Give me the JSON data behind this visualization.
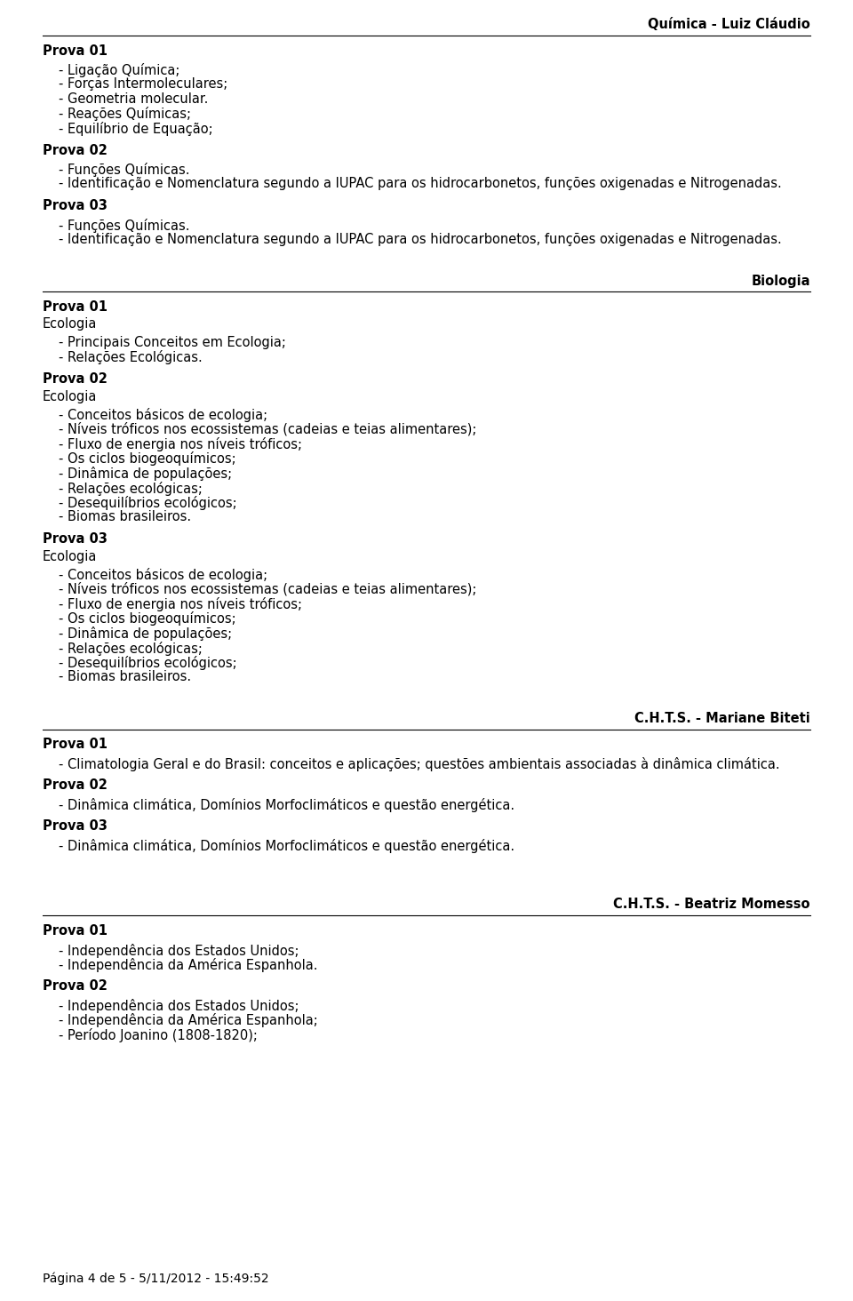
{
  "bg_color": "#ffffff",
  "text_color": "#000000",
  "page_width": 9.6,
  "page_height": 14.64,
  "dpi": 100,
  "sections": [
    {
      "type": "header_line",
      "label": "Química - Luiz Cláudio",
      "align": "right",
      "bold": true,
      "fontsize": 10.5
    },
    {
      "type": "hline"
    },
    {
      "type": "vspace",
      "size": 6
    },
    {
      "type": "heading",
      "text": "Prova 01",
      "bold": true,
      "fontsize": 10.5
    },
    {
      "type": "vspace",
      "size": 4
    },
    {
      "type": "bullet",
      "text": "- Ligação Química;",
      "fontsize": 10.5,
      "indent": 18
    },
    {
      "type": "bullet",
      "text": "- Forças Intermoleculares;",
      "fontsize": 10.5,
      "indent": 18
    },
    {
      "type": "bullet",
      "text": "- Geometria molecular.",
      "fontsize": 10.5,
      "indent": 18
    },
    {
      "type": "bullet",
      "text": "- Reações Químicas;",
      "fontsize": 10.5,
      "indent": 18
    },
    {
      "type": "bullet",
      "text": "- Equilíbrio de Equação;",
      "fontsize": 10.5,
      "indent": 18
    },
    {
      "type": "vspace",
      "size": 8
    },
    {
      "type": "heading",
      "text": "Prova 02",
      "bold": true,
      "fontsize": 10.5
    },
    {
      "type": "vspace",
      "size": 4
    },
    {
      "type": "bullet",
      "text": "- Funções Químicas.",
      "fontsize": 10.5,
      "indent": 18
    },
    {
      "type": "bullet",
      "text": "- Identificação e Nomenclatura segundo a IUPAC para os hidrocarbonetos, funções oxigenadas e Nitrogenadas.",
      "fontsize": 10.5,
      "indent": 18
    },
    {
      "type": "vspace",
      "size": 8
    },
    {
      "type": "heading",
      "text": "Prova 03",
      "bold": true,
      "fontsize": 10.5
    },
    {
      "type": "vspace",
      "size": 4
    },
    {
      "type": "bullet",
      "text": "- Funções Químicas.",
      "fontsize": 10.5,
      "indent": 18
    },
    {
      "type": "bullet",
      "text": "- Identificação e Nomenclatura segundo a IUPAC para os hidrocarbonetos, funções oxigenadas e Nitrogenadas.",
      "fontsize": 10.5,
      "indent": 18
    },
    {
      "type": "vspace",
      "size": 30
    },
    {
      "type": "header_line",
      "label": "Biologia",
      "align": "right",
      "bold": true,
      "fontsize": 10.5
    },
    {
      "type": "hline"
    },
    {
      "type": "vspace",
      "size": 6
    },
    {
      "type": "heading",
      "text": "Prova 01",
      "bold": true,
      "fontsize": 10.5
    },
    {
      "type": "vspace",
      "size": 2
    },
    {
      "type": "subheading",
      "text": "Ecologia",
      "bold": false,
      "fontsize": 10.5
    },
    {
      "type": "vspace",
      "size": 4
    },
    {
      "type": "bullet",
      "text": "- Principais Conceitos em Ecologia;",
      "fontsize": 10.5,
      "indent": 18
    },
    {
      "type": "bullet",
      "text": "- Relações Ecológicas.",
      "fontsize": 10.5,
      "indent": 18
    },
    {
      "type": "vspace",
      "size": 8
    },
    {
      "type": "heading",
      "text": "Prova 02",
      "bold": true,
      "fontsize": 10.5
    },
    {
      "type": "vspace",
      "size": 2
    },
    {
      "type": "subheading",
      "text": "Ecologia",
      "bold": false,
      "fontsize": 10.5
    },
    {
      "type": "vspace",
      "size": 4
    },
    {
      "type": "bullet",
      "text": "- Conceitos básicos de ecologia;",
      "fontsize": 10.5,
      "indent": 18
    },
    {
      "type": "bullet",
      "text": "- Níveis tróficos nos ecossistemas (cadeias e teias alimentares);",
      "fontsize": 10.5,
      "indent": 18
    },
    {
      "type": "bullet",
      "text": "- Fluxo de energia nos níveis tróficos;",
      "fontsize": 10.5,
      "indent": 18
    },
    {
      "type": "bullet",
      "text": "- Os ciclos biogeoquímicos;",
      "fontsize": 10.5,
      "indent": 18
    },
    {
      "type": "bullet",
      "text": "- Dinâmica de populações;",
      "fontsize": 10.5,
      "indent": 18
    },
    {
      "type": "bullet",
      "text": "- Relações ecológicas;",
      "fontsize": 10.5,
      "indent": 18
    },
    {
      "type": "bullet",
      "text": "- Desequilíbrios ecológicos;",
      "fontsize": 10.5,
      "indent": 18
    },
    {
      "type": "bullet",
      "text": "- Biomas brasileiros.",
      "fontsize": 10.5,
      "indent": 18
    },
    {
      "type": "vspace",
      "size": 8
    },
    {
      "type": "heading",
      "text": "Prova 03",
      "bold": true,
      "fontsize": 10.5
    },
    {
      "type": "vspace",
      "size": 2
    },
    {
      "type": "subheading",
      "text": "Ecologia",
      "bold": false,
      "fontsize": 10.5
    },
    {
      "type": "vspace",
      "size": 4
    },
    {
      "type": "bullet",
      "text": "- Conceitos básicos de ecologia;",
      "fontsize": 10.5,
      "indent": 18
    },
    {
      "type": "bullet",
      "text": "- Níveis tróficos nos ecossistemas (cadeias e teias alimentares);",
      "fontsize": 10.5,
      "indent": 18
    },
    {
      "type": "bullet",
      "text": "- Fluxo de energia nos níveis tróficos;",
      "fontsize": 10.5,
      "indent": 18
    },
    {
      "type": "bullet",
      "text": "- Os ciclos biogeoquímicos;",
      "fontsize": 10.5,
      "indent": 18
    },
    {
      "type": "bullet",
      "text": "- Dinâmica de populações;",
      "fontsize": 10.5,
      "indent": 18
    },
    {
      "type": "bullet",
      "text": "- Relações ecológicas;",
      "fontsize": 10.5,
      "indent": 18
    },
    {
      "type": "bullet",
      "text": "- Desequilíbrios ecológicos;",
      "fontsize": 10.5,
      "indent": 18
    },
    {
      "type": "bullet",
      "text": "- Biomas brasileiros.",
      "fontsize": 10.5,
      "indent": 18
    },
    {
      "type": "vspace",
      "size": 30
    },
    {
      "type": "header_line",
      "label": "C.H.T.S. - Mariane Biteti",
      "align": "right",
      "bold": true,
      "fontsize": 10.5
    },
    {
      "type": "hline"
    },
    {
      "type": "vspace",
      "size": 6
    },
    {
      "type": "heading",
      "text": "Prova 01",
      "bold": true,
      "fontsize": 10.5
    },
    {
      "type": "vspace",
      "size": 4
    },
    {
      "type": "bullet",
      "text": "- Climatologia Geral e do Brasil: conceitos e aplicações; questões ambientais associadas à dinâmica climática.",
      "fontsize": 10.5,
      "indent": 18
    },
    {
      "type": "vspace",
      "size": 8
    },
    {
      "type": "heading",
      "text": "Prova 02",
      "bold": true,
      "fontsize": 10.5
    },
    {
      "type": "vspace",
      "size": 4
    },
    {
      "type": "bullet",
      "text": "- Dinâmica climática, Domínios Morfoclimáticos e questão energética.",
      "fontsize": 10.5,
      "indent": 18
    },
    {
      "type": "vspace",
      "size": 8
    },
    {
      "type": "heading",
      "text": "Prova 03",
      "bold": true,
      "fontsize": 10.5
    },
    {
      "type": "vspace",
      "size": 4
    },
    {
      "type": "bullet",
      "text": "- Dinâmica climática, Domínios Morfoclimáticos e questão energética.",
      "fontsize": 10.5,
      "indent": 18
    },
    {
      "type": "vspace",
      "size": 50
    },
    {
      "type": "header_line",
      "label": "C.H.T.S. - Beatriz Momesso",
      "align": "right",
      "bold": true,
      "fontsize": 10.5
    },
    {
      "type": "hline"
    },
    {
      "type": "vspace",
      "size": 6
    },
    {
      "type": "heading",
      "text": "Prova 01",
      "bold": true,
      "fontsize": 10.5
    },
    {
      "type": "vspace",
      "size": 4
    },
    {
      "type": "bullet",
      "text": "- Independência dos Estados Unidos;",
      "fontsize": 10.5,
      "indent": 18
    },
    {
      "type": "bullet",
      "text": "- Independência da América Espanhola.",
      "fontsize": 10.5,
      "indent": 18
    },
    {
      "type": "vspace",
      "size": 8
    },
    {
      "type": "heading",
      "text": "Prova 02",
      "bold": true,
      "fontsize": 10.5
    },
    {
      "type": "vspace",
      "size": 4
    },
    {
      "type": "bullet",
      "text": "- Independência dos Estados Unidos;",
      "fontsize": 10.5,
      "indent": 18
    },
    {
      "type": "bullet",
      "text": "- Independência da América Espanhola;",
      "fontsize": 10.5,
      "indent": 18
    },
    {
      "type": "bullet",
      "text": "- Período Joanino (1808-1820);",
      "fontsize": 10.5,
      "indent": 18
    }
  ],
  "footer_text": "Página 4 de 5 - 5/11/2012 - 15:49:52",
  "footer_fontsize": 10
}
